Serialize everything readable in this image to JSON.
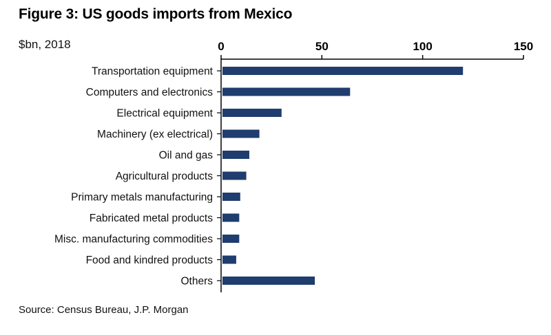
{
  "chart_data": {
    "type": "bar",
    "orientation": "horizontal",
    "title": "Figure 3: US goods imports from Mexico",
    "unit_label": "$bn, 2018",
    "source": "Source: Census Bureau, J.P. Morgan",
    "categories": [
      "Transportation equipment",
      "Computers and electronics",
      "Electrical equipment",
      "Machinery (ex electrical)",
      "Oil and gas",
      "Agricultural products",
      "Primary metals manufacturing",
      "Fabricated metal products",
      "Misc. manufacturing commodities",
      "Food and kindred products",
      "Others"
    ],
    "values": [
      120,
      64,
      30,
      19,
      14,
      12.5,
      9.5,
      9,
      9,
      7.5,
      46.5
    ],
    "xlim": [
      0,
      150
    ],
    "xticks": [
      0,
      50,
      100,
      150
    ],
    "axis_position": "top",
    "grid": false,
    "bar_color": "#1f3d6e"
  }
}
